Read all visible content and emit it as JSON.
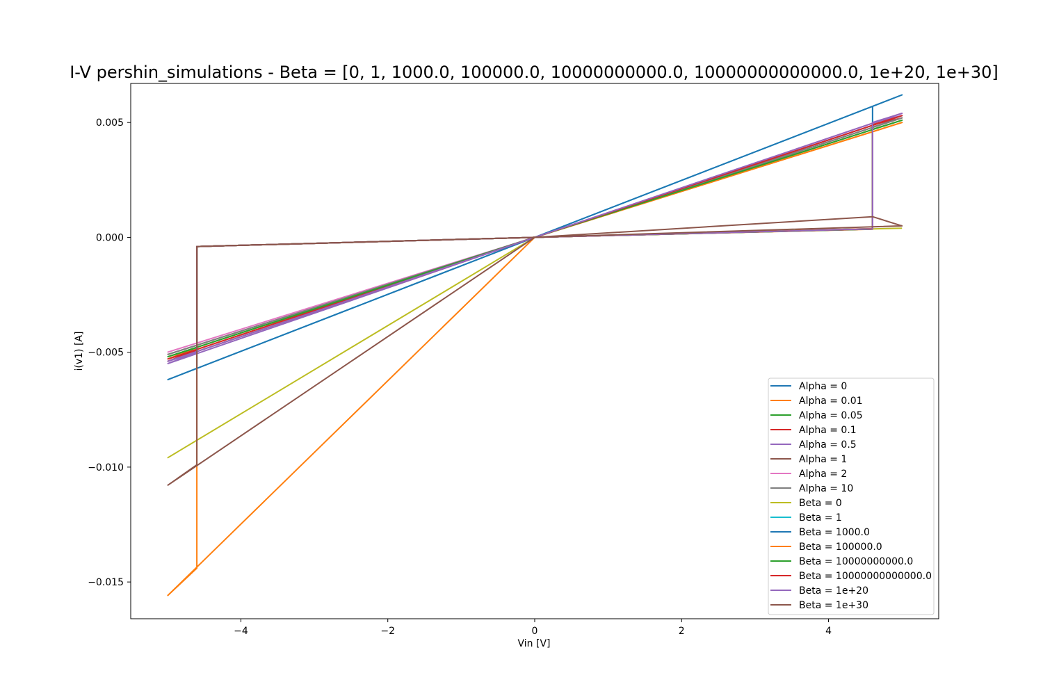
{
  "chart_data": {
    "type": "line",
    "title": "I-V pershin_simulations - Beta = [0, 1, 1000.0, 100000.0, 10000000000.0, 10000000000000.0, 1e+20, 1e+30]",
    "xlabel": "Vin [V]",
    "ylabel": "i(v1) [A]",
    "xlim": [
      -5.5,
      5.5
    ],
    "ylim": [
      -0.0166,
      0.0067
    ],
    "xticks": [
      -4,
      -2,
      0,
      2,
      4
    ],
    "xtick_labels": [
      "−4",
      "−2",
      "0",
      "2",
      "4"
    ],
    "yticks": [
      0.005,
      0.0,
      -0.005,
      -0.01,
      -0.015
    ],
    "ytick_labels": [
      "0.005",
      "0.000",
      "−0.005",
      "−0.010",
      "−0.015"
    ],
    "grid": false,
    "legend_position": "lower-right",
    "series": [
      {
        "name": "Alpha = 0",
        "color": "#1f77b4",
        "x": [
          -5,
          -4.6,
          -4.6,
          0,
          4.6,
          4.6,
          5,
          0,
          -5
        ],
        "y": [
          -0.0054,
          -0.0049,
          -0.0004,
          0,
          0.00037,
          0.0049,
          0.0053,
          0,
          -0.0054
        ]
      },
      {
        "name": "Alpha = 0.01",
        "color": "#ff7f0e",
        "x": [
          -5,
          -4.6,
          -4.6,
          0,
          4.6,
          4.6,
          5,
          0,
          -5
        ],
        "y": [
          -0.0053,
          -0.0048,
          -0.0004,
          0,
          0.00035,
          0.0046,
          0.005,
          0,
          -0.0053
        ]
      },
      {
        "name": "Alpha = 0.05",
        "color": "#2ca02c",
        "x": [
          -5,
          -4.6,
          -4.6,
          0,
          4.6,
          4.6,
          5,
          0,
          -5
        ],
        "y": [
          -0.0052,
          -0.0048,
          -0.0004,
          0,
          0.00036,
          0.0047,
          0.0051,
          0,
          -0.0052
        ]
      },
      {
        "name": "Alpha = 0.1",
        "color": "#d62728",
        "x": [
          -5,
          -4.6,
          -4.6,
          0,
          4.6,
          4.6,
          5,
          0,
          -5
        ],
        "y": [
          -0.0053,
          -0.0049,
          -0.0004,
          0,
          0.00036,
          0.0049,
          0.0052,
          0,
          -0.0053
        ]
      },
      {
        "name": "Alpha = 0.5",
        "color": "#9467bd",
        "x": [
          -5,
          -4.6,
          -4.6,
          0,
          4.6,
          4.6,
          5,
          0,
          -5
        ],
        "y": [
          -0.0055,
          -0.005,
          -0.0004,
          0,
          0.00037,
          0.005,
          0.0053,
          0,
          -0.0055
        ]
      },
      {
        "name": "Alpha = 1",
        "color": "#8c564b",
        "x": [
          -5,
          -4.6,
          -4.6,
          0,
          4.6,
          4.6,
          5,
          0,
          -5
        ],
        "y": [
          -0.0051,
          -0.0047,
          -0.0004,
          0,
          0.00036,
          0.0048,
          0.0052,
          0,
          -0.0051
        ]
      },
      {
        "name": "Alpha = 2",
        "color": "#e377c2",
        "x": [
          -5,
          -4.6,
          -4.6,
          0,
          4.6,
          4.6,
          5,
          0,
          -5
        ],
        "y": [
          -0.005,
          -0.0046,
          -0.0004,
          0,
          0.00037,
          0.005,
          0.0054,
          0,
          -0.005
        ]
      },
      {
        "name": "Alpha = 10",
        "color": "#7f7f7f",
        "x": [
          -5,
          -4.6,
          -4.6,
          0,
          4.6,
          4.6,
          5,
          0,
          -5
        ],
        "y": [
          -0.0051,
          -0.0047,
          -0.0004,
          0,
          0.00036,
          0.0048,
          0.0052,
          0,
          -0.0051
        ]
      },
      {
        "name": "Beta = 0",
        "color": "#bcbd22",
        "x": [
          -5,
          0,
          5
        ],
        "y": [
          -0.0096,
          0,
          0.0004
        ]
      },
      {
        "name": "Beta = 1",
        "color": "#17becf",
        "x": [
          -5,
          -4.6,
          -4.6,
          0,
          4.6,
          4.6,
          5,
          0,
          -5
        ],
        "y": [
          -0.0062,
          -0.0057,
          -0.0004,
          0,
          0.00038,
          0.0057,
          0.0062,
          0,
          -0.0062
        ]
      },
      {
        "name": "Beta = 1000.0",
        "color": "#1f77b4",
        "x": [
          -5,
          -4.6,
          -4.6,
          0,
          4.6,
          4.6,
          5,
          0,
          -5
        ],
        "y": [
          -0.0062,
          -0.0057,
          -0.0004,
          0,
          0.00038,
          0.0057,
          0.0062,
          0,
          -0.0062
        ]
      },
      {
        "name": "Beta = 100000.0",
        "color": "#ff7f0e",
        "x": [
          -5,
          -4.6,
          -4.6,
          0,
          4.6,
          4.6,
          5,
          0,
          -5
        ],
        "y": [
          -0.0156,
          -0.0144,
          -0.0004,
          0,
          0.00038,
          0.0046,
          0.005,
          0,
          -0.0156
        ]
      },
      {
        "name": "Beta = 10000000000.0",
        "color": "#2ca02c",
        "x": [
          -5,
          -4.6,
          -4.6,
          0,
          4.6,
          4.6,
          5,
          0,
          -5
        ],
        "y": [
          -0.0052,
          -0.0048,
          -0.0004,
          0,
          0.00036,
          0.0047,
          0.0051,
          0,
          -0.0052
        ]
      },
      {
        "name": "Beta = 10000000000000.0",
        "color": "#d62728",
        "x": [
          -5,
          -4.6,
          -4.6,
          0,
          4.6,
          4.6,
          5,
          0,
          -5
        ],
        "y": [
          -0.0054,
          -0.0049,
          -0.0004,
          0,
          0.00037,
          0.0049,
          0.0053,
          0,
          -0.0054
        ]
      },
      {
        "name": "Beta = 1e+20",
        "color": "#9467bd",
        "x": [
          -5,
          -4.6,
          -4.6,
          0,
          4.6,
          4.6,
          5,
          0,
          -5
        ],
        "y": [
          -0.0054,
          -0.005,
          -0.0004,
          0,
          0.00037,
          0.005,
          0.0054,
          0,
          -0.0054
        ]
      },
      {
        "name": "Beta = 1e+30",
        "color": "#8c564b",
        "x": [
          -5,
          -4.6,
          -4.6,
          0,
          4.6,
          4.6,
          5,
          0,
          -5
        ],
        "y": [
          -0.0108,
          -0.0099,
          -0.0004,
          0,
          0.0009,
          0.0009,
          0.0005,
          0,
          -0.0108
        ]
      }
    ]
  }
}
